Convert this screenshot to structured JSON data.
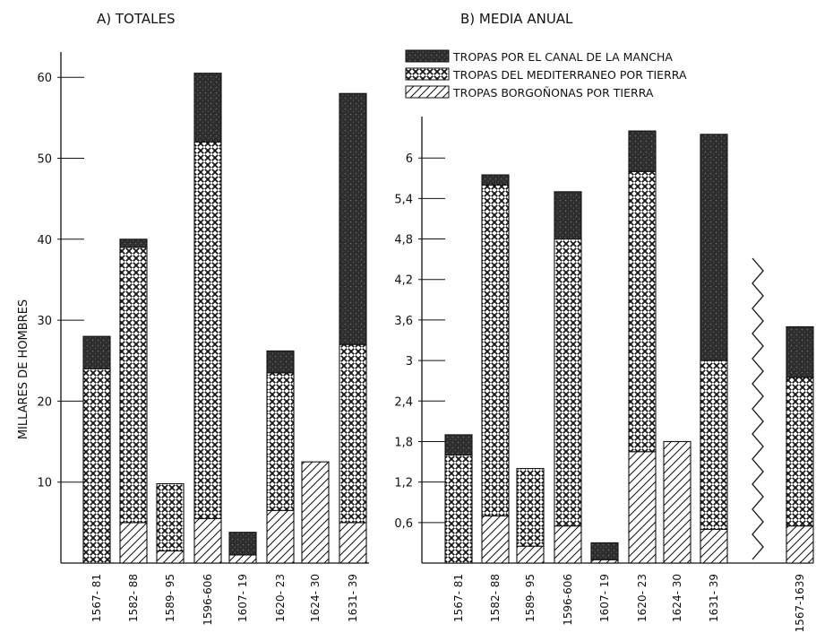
{
  "chart_data": [
    {
      "type": "bar",
      "title": "A) TOTALES",
      "ylabel": "MILLARES DE HOMBRES",
      "ylim": [
        0,
        60
      ],
      "yticks": [
        "10",
        "20",
        "30",
        "40",
        "50",
        "60"
      ],
      "stacked": true,
      "categories": [
        "1567- 81",
        "1582- 88",
        "1589- 95",
        "1596-606",
        "1607- 19",
        "1620- 23",
        "1624- 30",
        "1631- 39"
      ],
      "series": [
        {
          "name": "TROPAS BORGOÑONAS POR TIERRA",
          "values": [
            0,
            5,
            1.5,
            5.5,
            1,
            6.5,
            12.5,
            5
          ]
        },
        {
          "name": "TROPAS DEL MEDITERRANEO POR TIERRA",
          "values": [
            24,
            34,
            8.3,
            46.5,
            0,
            17,
            0,
            22
          ]
        },
        {
          "name": "TROPAS POR EL CANAL DE LA MANCHA",
          "values": [
            4,
            1,
            0,
            8.5,
            2.8,
            2.7,
            0,
            31
          ]
        }
      ]
    },
    {
      "type": "bar",
      "title": "B) MEDIA ANUAL",
      "ylim": [
        0,
        6.5
      ],
      "yticks": [
        "0,6",
        "1,2",
        "1,8",
        "2,4",
        "3",
        "3,6",
        "4,2",
        "4,8",
        "5,4",
        "6"
      ],
      "stacked": true,
      "axis_break": true,
      "categories": [
        "1567- 81",
        "1582- 88",
        "1589- 95",
        "1596-606",
        "1607- 19",
        "1620- 23",
        "1624- 30",
        "1631- 39",
        "1567-1639"
      ],
      "series": [
        {
          "name": "TROPAS BORGOÑONAS POR TIERRA",
          "values": [
            0,
            0.7,
            0.25,
            0.55,
            0.05,
            1.65,
            1.8,
            0.5,
            0.55
          ]
        },
        {
          "name": "TROPAS DEL MEDITERRANEO POR TIERRA",
          "values": [
            1.6,
            4.9,
            1.15,
            4.25,
            0,
            4.15,
            0,
            2.5,
            2.2
          ]
        },
        {
          "name": "TROPAS POR EL CANAL DE LA MANCHA",
          "values": [
            0.3,
            0.15,
            0,
            0.7,
            0.25,
            0.6,
            0,
            3.35,
            0.75
          ]
        }
      ]
    }
  ],
  "legend": {
    "placement": "top-right",
    "items": [
      {
        "label": "TROPAS POR EL CANAL DE LA MANCHA",
        "pattern": "dark"
      },
      {
        "label": "TROPAS DEL MEDITERRANEO POR TIERRA",
        "pattern": "crosshatch"
      },
      {
        "label": "TROPAS BORGOÑONAS POR TIERRA",
        "pattern": "diagonal"
      }
    ]
  },
  "colors": {
    "ink": "#111111",
    "dark_fill": "#2e2e2e",
    "background": "#ffffff"
  }
}
